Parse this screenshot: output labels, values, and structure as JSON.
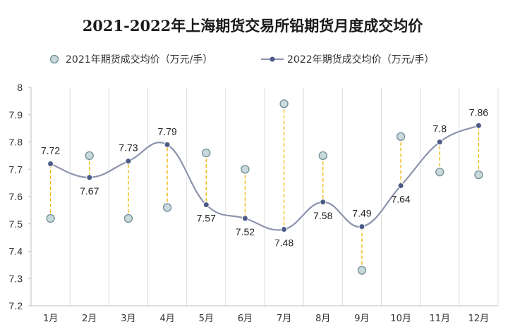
{
  "chart_data": {
    "type": "line",
    "title": "2021-2022年上海期货交易所铅期货月度成交均价",
    "categories": [
      "1月",
      "2月",
      "3月",
      "4月",
      "5月",
      "6月",
      "7月",
      "8月",
      "9月",
      "10月",
      "11月",
      "12月"
    ],
    "series": [
      {
        "name": "2021年期货成交均价（万元/手）",
        "style": "marker-only",
        "values": [
          7.52,
          7.75,
          7.52,
          7.56,
          7.76,
          7.7,
          7.94,
          7.75,
          7.33,
          7.82,
          7.69,
          7.68
        ]
      },
      {
        "name": "2022年期货成交均价（万元/手）",
        "style": "smooth-line-with-markers",
        "values": [
          7.72,
          7.67,
          7.73,
          7.79,
          7.57,
          7.52,
          7.48,
          7.58,
          7.49,
          7.64,
          7.8,
          7.86
        ],
        "labels": [
          "7.72",
          "7.67",
          "7.73",
          "7.79",
          "7.57",
          "7.52",
          "7.48",
          "7.58",
          "7.49",
          "7.64",
          "7.8",
          "7.86"
        ]
      }
    ],
    "ylim": [
      7.2,
      8.0
    ],
    "yticks": [
      "7.2",
      "7.3",
      "7.4",
      "7.5",
      "7.6",
      "7.7",
      "7.8",
      "7.9",
      "8"
    ],
    "grid": "vertical",
    "drop_lines": true,
    "legend_position": "top",
    "colors": {
      "series_2021_fill": "#c9d9dc",
      "series_2021_stroke": "#6f8e94",
      "series_2022_line": "#8d93ad",
      "series_2022_marker": "#4b5a86",
      "drop_line": "#f0b400",
      "grid": "#dcdcdc"
    }
  }
}
